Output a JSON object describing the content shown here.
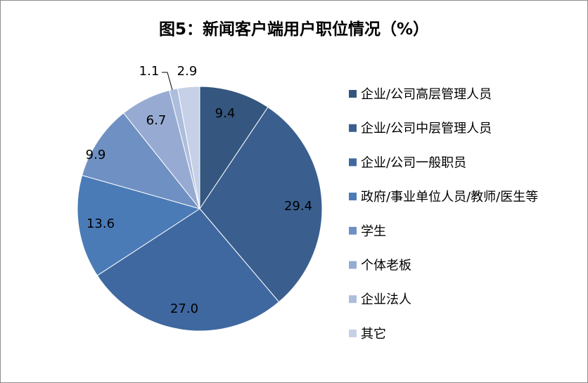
{
  "chart_data": {
    "type": "pie",
    "title": "图5：新闻客户端用户职位情况（%）",
    "categories": [
      "企业/公司高层管理人员",
      "企业/公司中层管理人员",
      "企业/公司一般职员",
      "政府/事业单位人员/教师/医生等",
      "学生",
      "个体老板",
      "企业法人",
      "其它"
    ],
    "values": [
      9.4,
      29.4,
      27.0,
      13.6,
      9.9,
      6.7,
      1.1,
      2.9
    ],
    "value_labels": [
      "9.4",
      "29.4",
      "27.0",
      "13.6",
      "9.9",
      "6.7",
      "1.1",
      "2.9"
    ],
    "colors": [
      "#34567f",
      "#3a5f8e",
      "#3f68a0",
      "#4a7bb7",
      "#6f90c2",
      "#97abd2",
      "#adbedc",
      "#c6d1e7"
    ],
    "legend_position": "right",
    "start_angle": "12 o'clock, clockwise"
  }
}
